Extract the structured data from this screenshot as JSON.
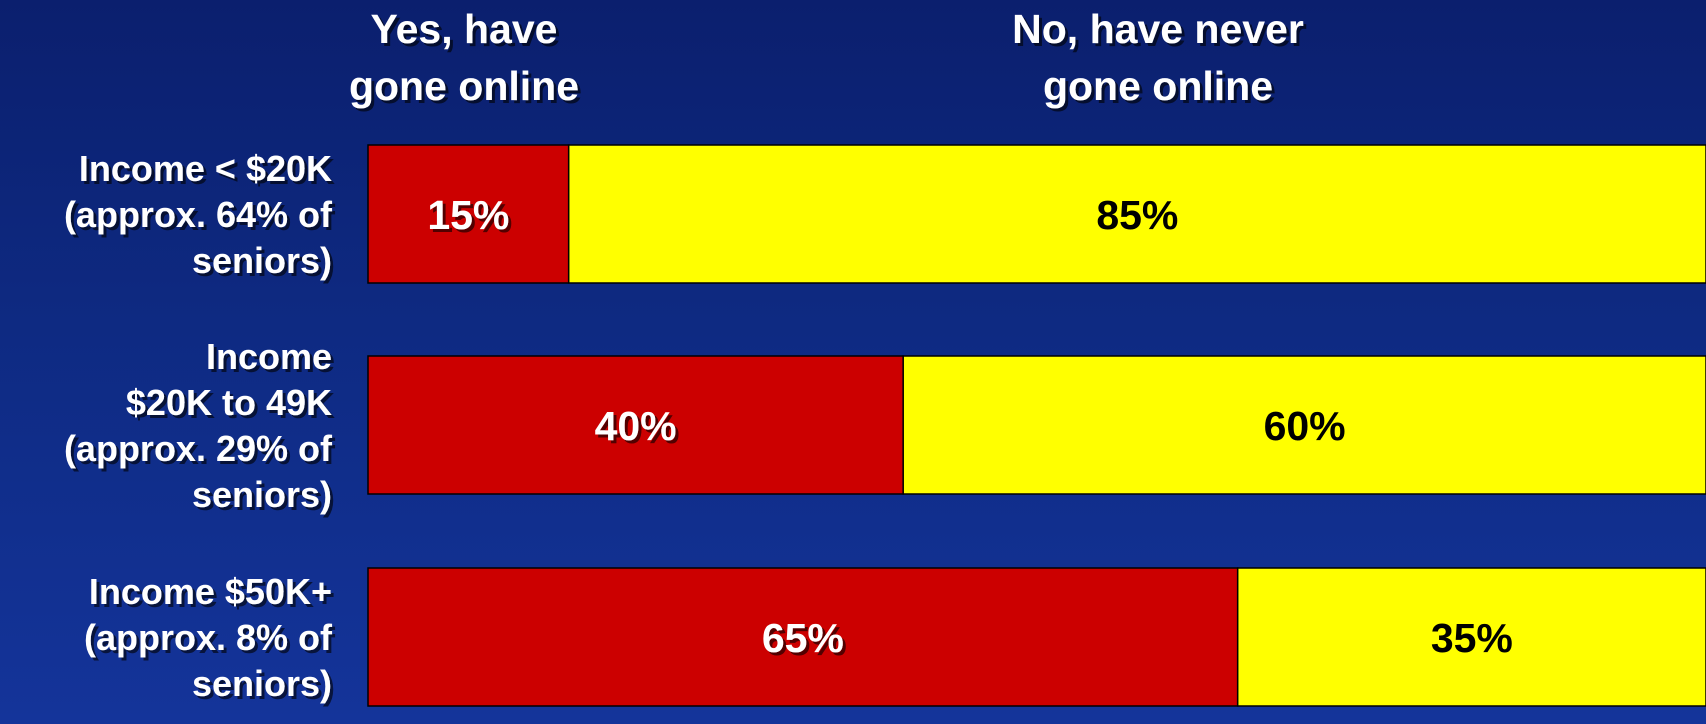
{
  "colors": {
    "yes": "#cc0000",
    "no": "#ffff00",
    "yes_label": "#ffffff",
    "no_label": "#000000",
    "text": "#ffffff"
  },
  "chart_data": {
    "type": "bar",
    "orientation": "horizontal",
    "stacked": true,
    "percent_stacked": true,
    "categories": [
      [
        "Income < $20K",
        "(approx. 64% of",
        "seniors)"
      ],
      [
        "Income",
        "$20K to 49K",
        "(approx. 29% of",
        "seniors)"
      ],
      [
        "Income $50K+",
        "(approx. 8% of",
        "seniors)"
      ]
    ],
    "series": [
      {
        "name": [
          "Yes, have",
          "gone online"
        ],
        "values": [
          15,
          40,
          65
        ],
        "labels": [
          "15%",
          "40%",
          "65%"
        ]
      },
      {
        "name": [
          "No, have never",
          "gone online"
        ],
        "values": [
          85,
          60,
          35
        ],
        "labels": [
          "85%",
          "60%",
          "35%"
        ]
      }
    ],
    "xlim": [
      0,
      100
    ],
    "grid": false,
    "legend": "top"
  }
}
